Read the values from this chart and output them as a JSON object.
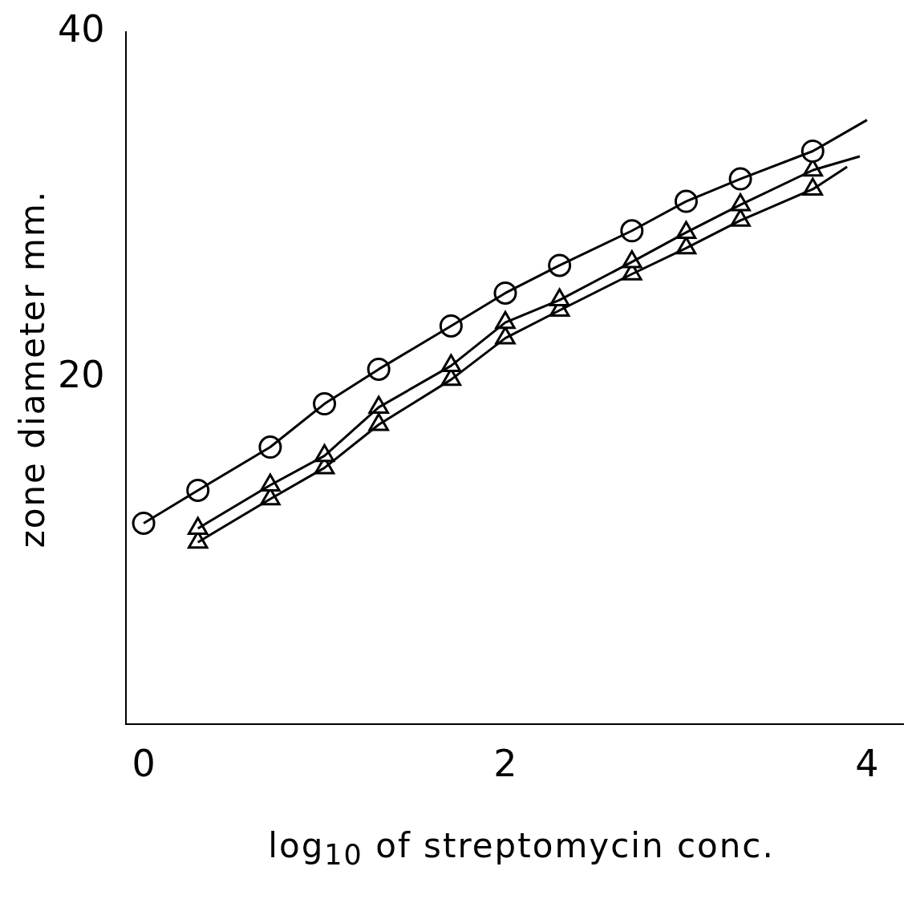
{
  "chart_data": {
    "type": "scatter",
    "xlabel": "log$_{10}$ of streptomycin conc.",
    "ylabel": "zone diameter mm.",
    "xlim": [
      -0.1,
      4.2
    ],
    "ylim": [
      0,
      40
    ],
    "xticks": [
      0,
      2,
      4
    ],
    "yticks": [
      20,
      40
    ],
    "grid": false,
    "legend": false,
    "series": [
      {
        "type": "line",
        "marker": "none",
        "color": "#000000",
        "x": [
          0,
          0.3,
          0.7,
          1,
          1.3,
          1.7,
          2,
          2.3,
          2.7,
          3,
          3.3,
          3.7,
          4
        ],
        "values": [
          11.6,
          13.5,
          16.0,
          18.5,
          20.5,
          23.0,
          24.9,
          26.5,
          28.5,
          30.2,
          31.5,
          33.1,
          34.9
        ]
      },
      {
        "type": "line",
        "marker": "none",
        "color": "#000000",
        "x": [
          0.3,
          0.7,
          1,
          1.3,
          1.7,
          2,
          2.3,
          2.7,
          3,
          3.3,
          3.7,
          3.96
        ],
        "values": [
          11.3,
          13.8,
          15.5,
          18.3,
          20.7,
          23.2,
          24.5,
          26.7,
          28.4,
          30.0,
          32.0,
          32.8
        ]
      },
      {
        "type": "line",
        "marker": "none",
        "color": "#000000",
        "x": [
          0.3,
          0.7,
          1,
          1.3,
          1.7,
          2,
          2.3,
          2.7,
          3,
          3.3,
          3.7,
          3.89
        ],
        "values": [
          10.5,
          13.0,
          14.8,
          17.3,
          19.9,
          22.3,
          23.9,
          26.0,
          27.5,
          29.1,
          30.9,
          32.2
        ]
      },
      {
        "type": "scatter",
        "marker": "circle",
        "color": "#000000",
        "x": [
          0,
          0.3,
          0.7,
          1,
          1.3,
          1.7,
          2,
          2.3,
          2.7,
          3,
          3.3,
          3.7
        ],
        "values": [
          11.6,
          13.5,
          16.0,
          18.5,
          20.5,
          23.0,
          24.9,
          26.5,
          28.5,
          30.2,
          31.5,
          33.1
        ]
      },
      {
        "type": "scatter",
        "marker": "triangle",
        "color": "#000000",
        "x": [
          0.3,
          0.7,
          1,
          1.3,
          1.7,
          2,
          2.3,
          2.7,
          3,
          3.3,
          3.7
        ],
        "values": [
          11.3,
          13.8,
          15.5,
          18.3,
          20.7,
          23.2,
          24.5,
          26.7,
          28.4,
          30.0,
          32.0
        ]
      },
      {
        "type": "scatter",
        "marker": "triangle",
        "color": "#000000",
        "x": [
          0.3,
          0.7,
          1,
          1.3,
          1.7,
          2,
          2.3,
          2.7,
          3,
          3.3,
          3.7
        ],
        "values": [
          10.5,
          13.0,
          14.8,
          17.3,
          19.9,
          22.3,
          23.9,
          26.0,
          27.5,
          29.1,
          30.9
        ]
      }
    ]
  }
}
